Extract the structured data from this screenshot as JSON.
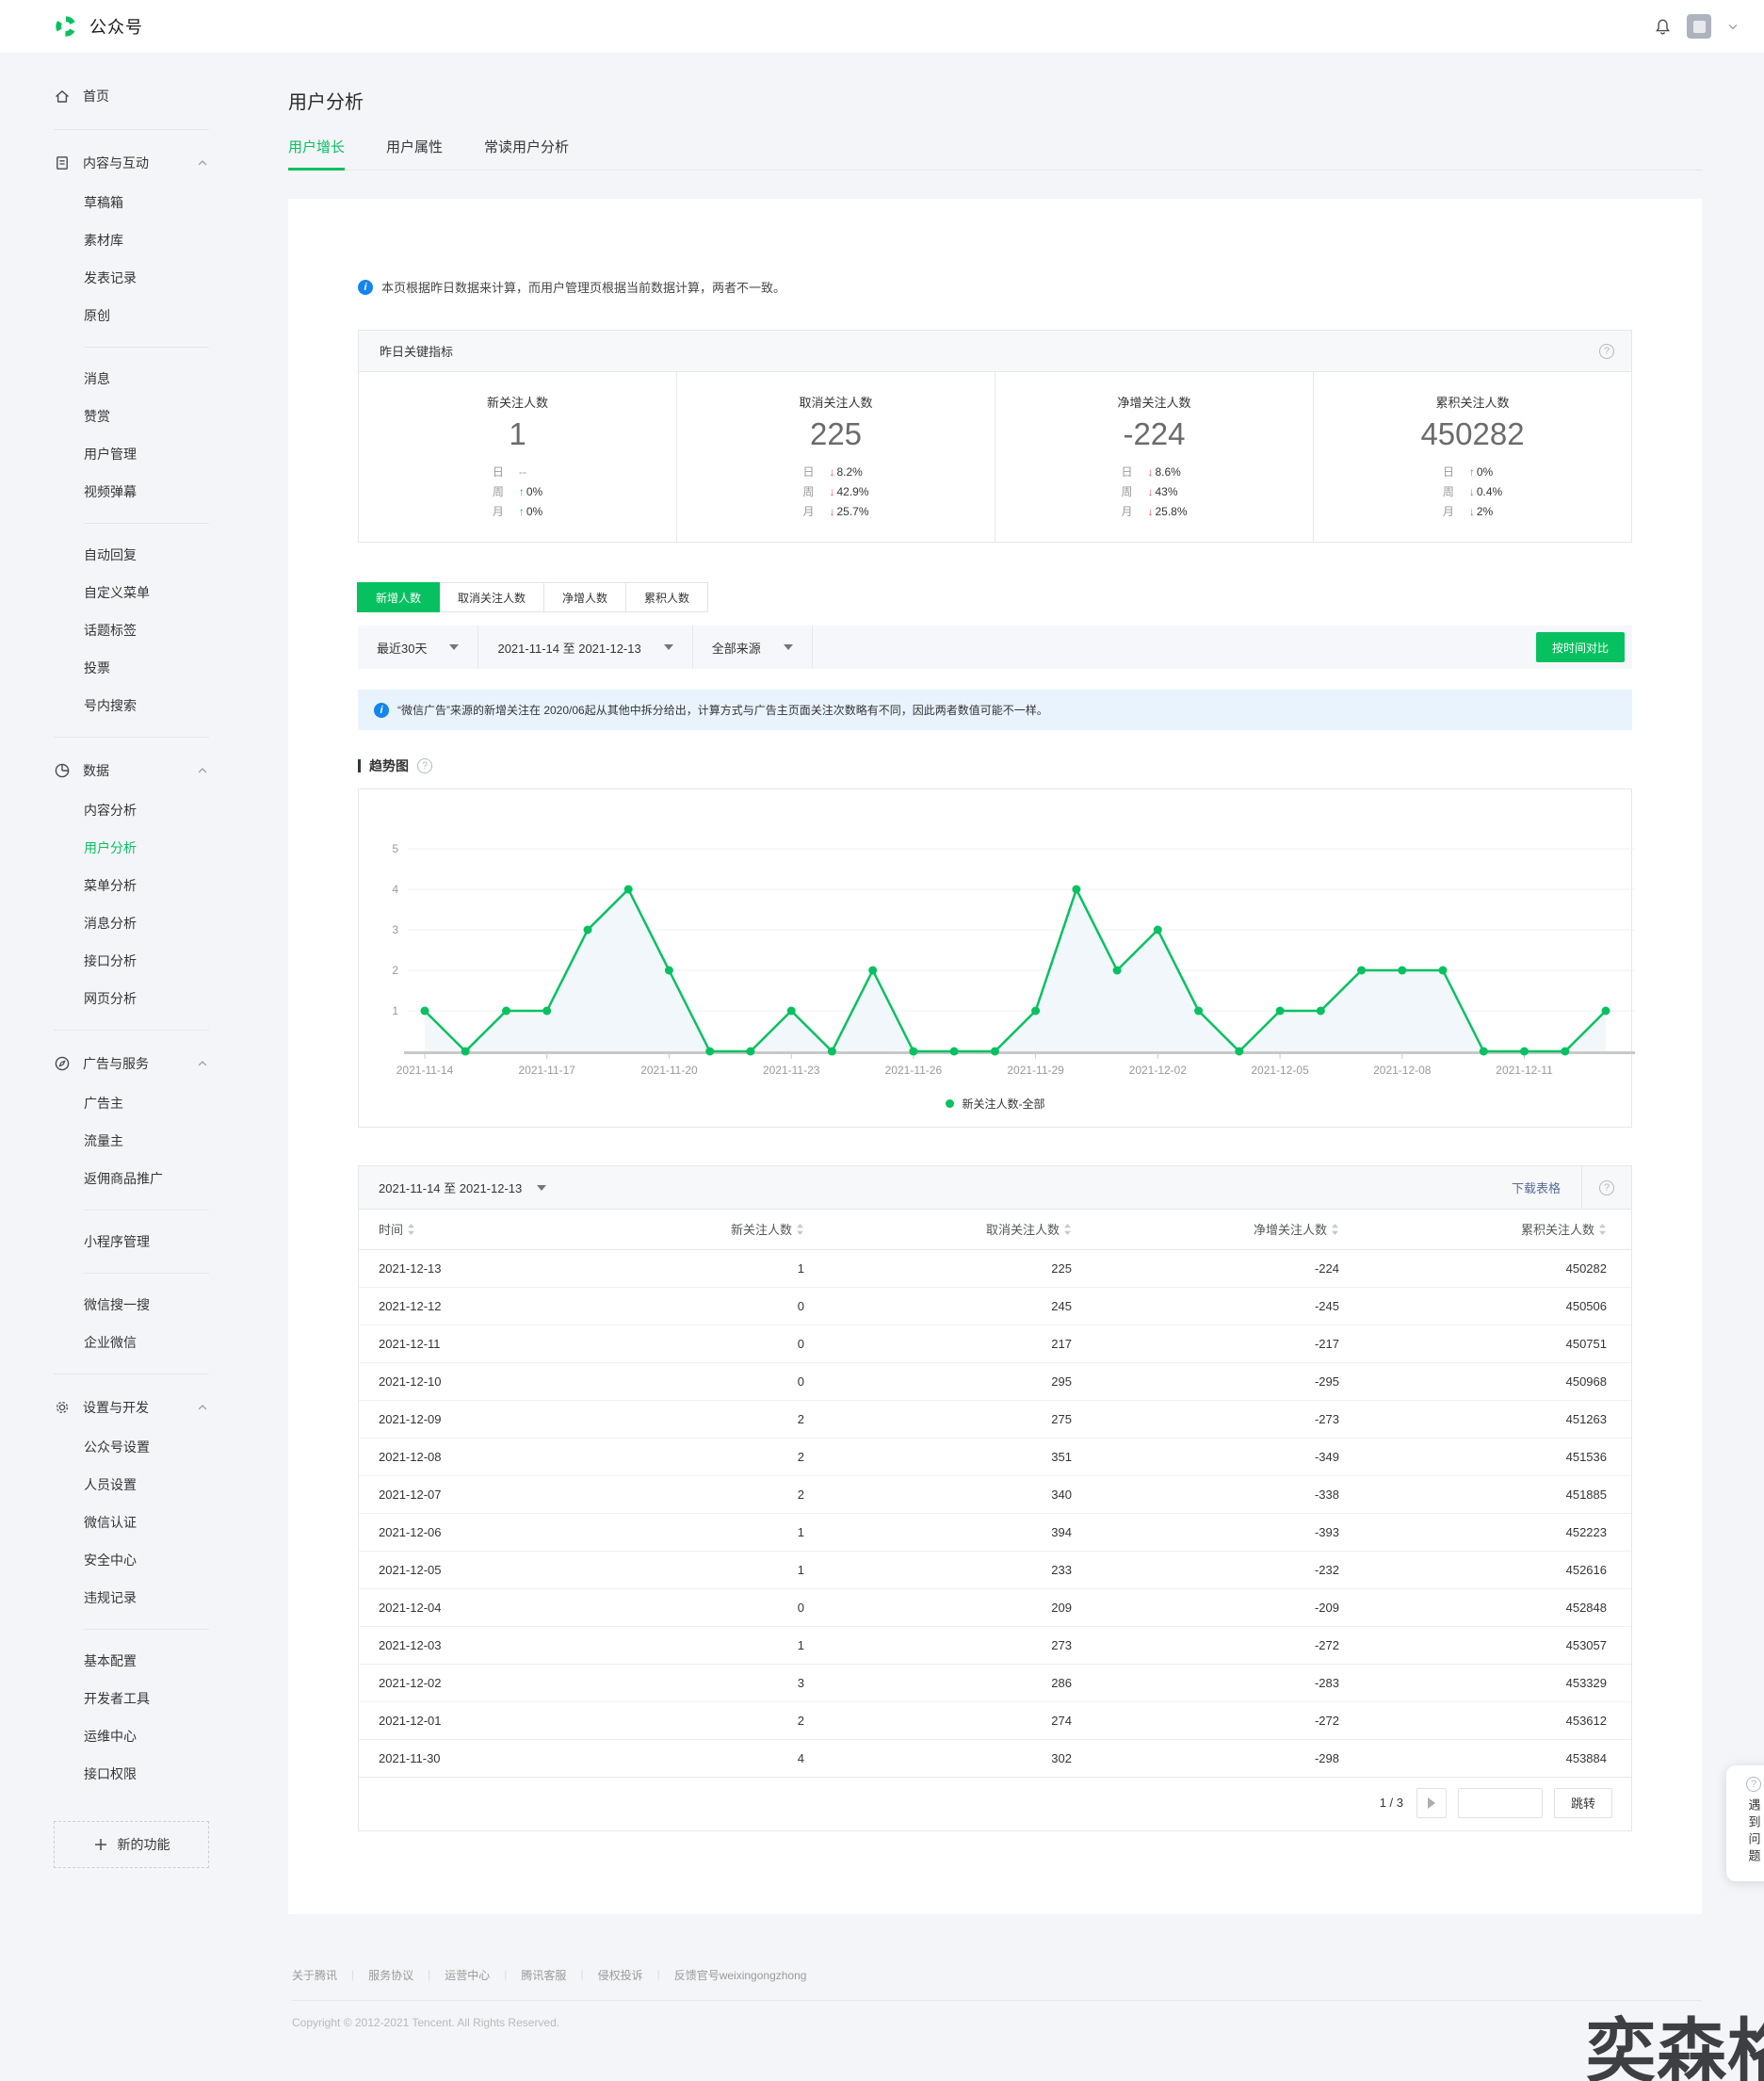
{
  "header": {
    "brand": "公众号"
  },
  "sidebar": {
    "home": {
      "label": "首页"
    },
    "sections": [
      {
        "id": "content",
        "icon": "doc-icon",
        "label": "内容与互动",
        "groups": [
          [
            "草稿箱",
            "素材库",
            "发表记录",
            "原创"
          ],
          [
            "消息",
            "赞赏",
            "用户管理",
            "视频弹幕"
          ],
          [
            "自动回复",
            "自定义菜单",
            "话题标签",
            "投票",
            "号内搜索"
          ]
        ]
      },
      {
        "id": "data",
        "icon": "pie-icon",
        "label": "数据",
        "active": "用户分析",
        "groups": [
          [
            "内容分析",
            "用户分析",
            "菜单分析",
            "消息分析",
            "接口分析",
            "网页分析"
          ]
        ]
      },
      {
        "id": "ads",
        "icon": "compass-icon",
        "label": "广告与服务",
        "groups": [
          [
            "广告主",
            "流量主",
            "返佣商品推广"
          ],
          [
            "小程序管理"
          ],
          [
            "微信搜一搜",
            "企业微信"
          ]
        ]
      },
      {
        "id": "settings",
        "icon": "gear-icon",
        "label": "设置与开发",
        "groups": [
          [
            "公众号设置",
            "人员设置",
            "微信认证",
            "安全中心",
            "违规记录"
          ],
          [
            "基本配置",
            "开发者工具",
            "运维中心",
            "接口权限"
          ]
        ]
      }
    ],
    "new_feature": "新的功能"
  },
  "page": {
    "title": "用户分析",
    "tabs": [
      {
        "label": "用户增长",
        "active": true
      },
      {
        "label": "用户属性",
        "active": false
      },
      {
        "label": "常读用户分析",
        "active": false
      }
    ]
  },
  "note": "本页根据昨日数据来计算，而用户管理页根据当前数据计算，两者不一致。",
  "metrics": {
    "title": "昨日关键指标",
    "items": [
      {
        "label": "新关注人数",
        "value": "1",
        "trends": [
          {
            "period": "日",
            "dir": "none",
            "value": "--"
          },
          {
            "period": "周",
            "dir": "up",
            "value": "0%"
          },
          {
            "period": "月",
            "dir": "up",
            "value": "0%"
          }
        ]
      },
      {
        "label": "取消关注人数",
        "value": "225",
        "trends": [
          {
            "period": "日",
            "dir": "down",
            "value": "8.2%"
          },
          {
            "period": "周",
            "dir": "down",
            "value": "42.9%"
          },
          {
            "period": "月",
            "dir": "down",
            "value": "25.7%"
          }
        ]
      },
      {
        "label": "净增关注人数",
        "value": "-224",
        "trends": [
          {
            "period": "日",
            "dir": "down",
            "value": "8.6%"
          },
          {
            "period": "周",
            "dir": "down",
            "value": "43%"
          },
          {
            "period": "月",
            "dir": "down",
            "value": "25.8%"
          }
        ]
      },
      {
        "label": "累积关注人数",
        "value": "450282",
        "trends": [
          {
            "period": "日",
            "dir": "up",
            "value": "0%"
          },
          {
            "period": "周",
            "dir": "down",
            "value": "0.4%"
          },
          {
            "period": "月",
            "dir": "down",
            "value": "2%"
          }
        ]
      }
    ]
  },
  "series_tabs": [
    {
      "label": "新增人数",
      "active": true
    },
    {
      "label": "取消关注人数",
      "active": false
    },
    {
      "label": "净增人数",
      "active": false
    },
    {
      "label": "累积人数",
      "active": false
    }
  ],
  "filters": {
    "selects": [
      {
        "label": "最近30天"
      },
      {
        "label": "2021-11-14 至 2021-12-13"
      },
      {
        "label": "全部来源"
      }
    ],
    "compare_button": "按时间对比"
  },
  "notice": "“微信广告”来源的新增关注在 2020/06起从其他中拆分给出，计算方式与广告主页面关注次数略有不同，因此两者数值可能不一样。",
  "chart_section_title": "趋势图",
  "chart_data": {
    "type": "line",
    "title": "趋势图",
    "x": [
      "2021-11-14",
      "2021-11-15",
      "2021-11-16",
      "2021-11-17",
      "2021-11-18",
      "2021-11-19",
      "2021-11-20",
      "2021-11-21",
      "2021-11-22",
      "2021-11-23",
      "2021-11-24",
      "2021-11-25",
      "2021-11-26",
      "2021-11-27",
      "2021-11-28",
      "2021-11-29",
      "2021-11-30",
      "2021-12-01",
      "2021-12-02",
      "2021-12-03",
      "2021-12-04",
      "2021-12-05",
      "2021-12-06",
      "2021-12-07",
      "2021-12-08",
      "2021-12-09",
      "2021-12-10",
      "2021-12-11",
      "2021-12-12",
      "2021-12-13"
    ],
    "series": [
      {
        "name": "新关注人数-全部",
        "values": [
          1,
          0,
          1,
          1,
          3,
          4,
          2,
          0,
          0,
          1,
          0,
          2,
          0,
          0,
          0,
          1,
          4,
          2,
          3,
          1,
          0,
          1,
          1,
          2,
          2,
          2,
          0,
          0,
          0,
          1
        ]
      }
    ],
    "ylim": [
      0,
      5
    ],
    "yticks": [
      1,
      2,
      3,
      4,
      5
    ],
    "x_tick_indices": [
      0,
      3,
      6,
      9,
      12,
      15,
      18,
      21,
      24,
      27
    ],
    "grid": true,
    "legend_position": "bottom",
    "line_color": "#07c160"
  },
  "table": {
    "date_range": "2021-11-14 至 2021-12-13",
    "download_label": "下载表格",
    "columns": [
      "时间",
      "新关注人数",
      "取消关注人数",
      "净增关注人数",
      "累积关注人数"
    ],
    "rows": [
      [
        "2021-12-13",
        "1",
        "225",
        "-224",
        "450282"
      ],
      [
        "2021-12-12",
        "0",
        "245",
        "-245",
        "450506"
      ],
      [
        "2021-12-11",
        "0",
        "217",
        "-217",
        "450751"
      ],
      [
        "2021-12-10",
        "0",
        "295",
        "-295",
        "450968"
      ],
      [
        "2021-12-09",
        "2",
        "275",
        "-273",
        "451263"
      ],
      [
        "2021-12-08",
        "2",
        "351",
        "-349",
        "451536"
      ],
      [
        "2021-12-07",
        "2",
        "340",
        "-338",
        "451885"
      ],
      [
        "2021-12-06",
        "1",
        "394",
        "-393",
        "452223"
      ],
      [
        "2021-12-05",
        "1",
        "233",
        "-232",
        "452616"
      ],
      [
        "2021-12-04",
        "0",
        "209",
        "-209",
        "452848"
      ],
      [
        "2021-12-03",
        "1",
        "273",
        "-272",
        "453057"
      ],
      [
        "2021-12-02",
        "3",
        "286",
        "-283",
        "453329"
      ],
      [
        "2021-12-01",
        "2",
        "274",
        "-272",
        "453612"
      ],
      [
        "2021-11-30",
        "4",
        "302",
        "-298",
        "453884"
      ]
    ]
  },
  "pagination": {
    "info": "1 / 3",
    "jump_label": "跳转"
  },
  "footer": {
    "links": [
      "关于腾讯",
      "服务协议",
      "运营中心",
      "腾讯客服",
      "侵权投诉",
      "反馈官号weixingongzhong"
    ],
    "copyright": "Copyright © 2012-2021 Tencent. All Rights Reserved."
  },
  "help_widget": {
    "label": "遇到问题"
  },
  "watermark": "奕森格",
  "colors": {
    "accent": "#07c160",
    "danger": "#fa5151",
    "info_blue": "#1485ee",
    "link_blue": "#576b95"
  }
}
